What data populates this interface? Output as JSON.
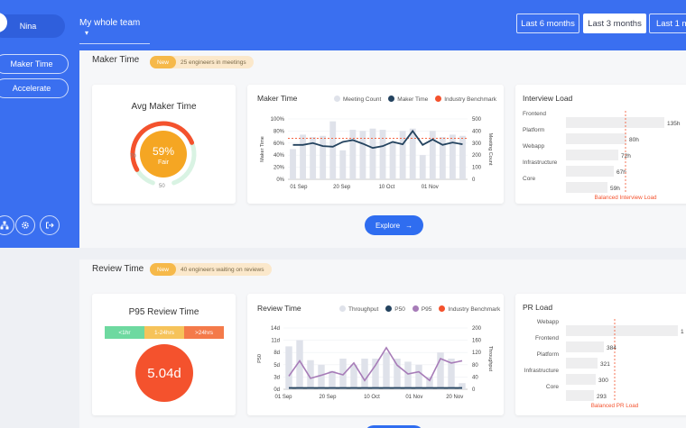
{
  "sidebar": {
    "user_name": "Nina",
    "nav": [
      {
        "label": "Maker Time"
      },
      {
        "label": "Accelerate"
      }
    ],
    "icons": [
      "org-chart-icon",
      "gear-icon",
      "logout-icon"
    ]
  },
  "topbar": {
    "team_select": "My whole team",
    "ranges": [
      {
        "label": "Last 6 months",
        "active": false
      },
      {
        "label": "Last 3 months",
        "active": true
      },
      {
        "label": "Last 1 m",
        "active": false
      }
    ]
  },
  "maker_section": {
    "title": "Maker Time",
    "badge": "New",
    "note": "25 engineers in meetings",
    "avg_card": {
      "title": "Avg Maker Time",
      "value": "59%",
      "rating": "Fair",
      "gauge_left": "70",
      "gauge_bottom": "50",
      "percent": 0.59
    },
    "explore": "Explore",
    "interview_card": {
      "title": "Interview Load",
      "rows": [
        {
          "name": "Frontend",
          "value": "135h"
        },
        {
          "name": "Platform",
          "value": "80h"
        },
        {
          "name": "Webapp",
          "value": "72h"
        },
        {
          "name": "Infrastructure",
          "value": "67h"
        },
        {
          "name": "Core",
          "value": "59h"
        }
      ],
      "benchmark_label": "Balanced Interview Load"
    }
  },
  "review_section": {
    "title": "Review Time",
    "badge": "New",
    "note": "40 engineers waiting on reviews",
    "p95_card": {
      "title": "P95 Review Time",
      "value": "5.04d",
      "buckets": [
        "<1hr",
        "1-24hrs",
        ">24hrs"
      ]
    },
    "pr_card": {
      "title": "PR Load",
      "rows": [
        {
          "name": "Webapp",
          "value": "1"
        },
        {
          "name": "Frontend",
          "value": "384"
        },
        {
          "name": "Platform",
          "value": "321"
        },
        {
          "name": "Infrastructure",
          "value": "300"
        },
        {
          "name": "Core",
          "value": "293"
        }
      ],
      "benchmark_label": "Balanced PR Load"
    }
  },
  "colors": {
    "primary": "#3a6ff0",
    "orange": "#f5a623",
    "red": "#f4522d",
    "navy": "#24435f",
    "purple": "#a77cb8",
    "bar": "#dfe2ea"
  },
  "chart_data": [
    {
      "type": "bar",
      "title": "Maker Time",
      "x_ticks": [
        "01 Sep",
        "20 Sep",
        "10 Oct",
        "01 Nov"
      ],
      "ylabel": "Maker Time",
      "y2label": "Meeting Count",
      "y_ticks": [
        "0%",
        "20%",
        "40%",
        "60%",
        "80%",
        "100%"
      ],
      "y2_ticks": [
        "0",
        "100",
        "200",
        "300",
        "400",
        "500"
      ],
      "ylim": [
        0,
        100
      ],
      "y2lim": [
        0,
        500
      ],
      "legend": [
        "Meeting Count",
        "Maker Time",
        "Industry Benchmark"
      ],
      "series": [
        {
          "name": "Meeting Count",
          "values": [
            250,
            370,
            350,
            360,
            480,
            240,
            410,
            400,
            420,
            410,
            310,
            400,
            420,
            200,
            400,
            350,
            370,
            360
          ]
        },
        {
          "name": "Maker Time",
          "values": [
            57,
            57,
            60,
            55,
            54,
            62,
            65,
            59,
            52,
            55,
            62,
            58,
            80,
            57,
            66,
            57,
            61,
            58
          ]
        },
        {
          "name": "Industry Benchmark",
          "values": [
            68
          ]
        }
      ]
    },
    {
      "type": "bar",
      "title": "Review Time",
      "x_ticks": [
        "01 Sep",
        "20 Sep",
        "10 Oct",
        "01 Nov",
        "20 Nov"
      ],
      "ylabel": "P50",
      "y2label": "Throughput",
      "y_ticks": [
        "0d",
        "3d",
        "5d",
        "8d",
        "11d",
        "14d"
      ],
      "y2_ticks": [
        "0",
        "40",
        "80",
        "120",
        "160",
        "200"
      ],
      "ylim": [
        0,
        14
      ],
      "y2lim": [
        0,
        200
      ],
      "legend": [
        "Throughput",
        "P50",
        "P95",
        "Industry Benchmark"
      ],
      "series": [
        {
          "name": "Throughput",
          "values": [
            140,
            160,
            95,
            80,
            60,
            100,
            80,
            100,
            100,
            120,
            100,
            90,
            80,
            40,
            120,
            100,
            20
          ]
        },
        {
          "name": "P50",
          "values": [
            0.3,
            0.3,
            0.3,
            0.3,
            0.3,
            0.3,
            0.3,
            0.3,
            0.3,
            0.3,
            0.3,
            0.3,
            0.3,
            0.3,
            0.3,
            0.3,
            0.3
          ]
        },
        {
          "name": "P95",
          "values": [
            3,
            6.5,
            2.5,
            3.2,
            4,
            3.3,
            6,
            2,
            5.5,
            9.5,
            5.5,
            3.5,
            4,
            2,
            7,
            6,
            6.5
          ]
        }
      ]
    }
  ]
}
